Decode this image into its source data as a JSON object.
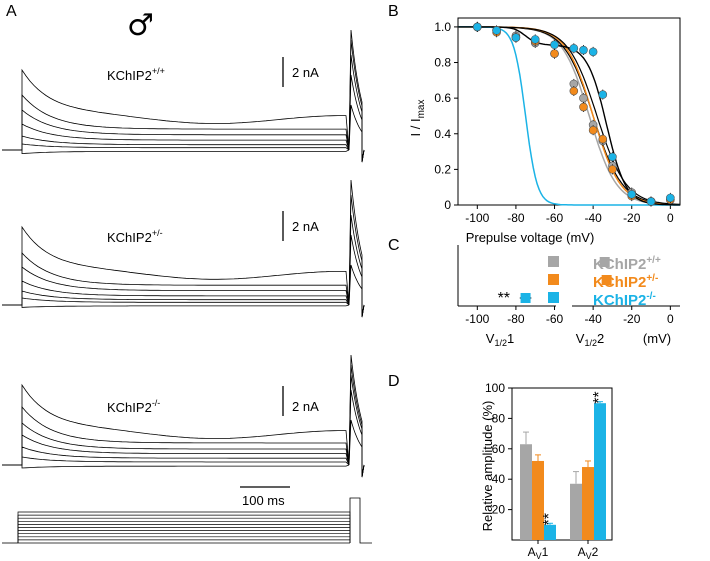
{
  "panels": {
    "a": "A",
    "b": "B",
    "c": "C",
    "d": "D"
  },
  "panel_a": {
    "sex_symbol": "♂",
    "traces": [
      {
        "genotype_base": "KChIP2",
        "genotype_sup": "+/+",
        "scale": "2 nA"
      },
      {
        "genotype_base": "KChIP2",
        "genotype_sup": "+/-",
        "scale": "2 nA"
      },
      {
        "genotype_base": "KChIP2",
        "genotype_sup": "-/-",
        "scale": "2 nA"
      }
    ],
    "time_scale": "100 ms"
  },
  "colors": {
    "wt": "#a6a6a6",
    "het": "#f28a1c",
    "ko": "#1bb3e6",
    "black": "#000000"
  },
  "chart_data": [
    {
      "type": "scatter",
      "title": "",
      "xlabel": "Prepulse voltage (mV)",
      "ylabel_base": "I / I",
      "ylabel_sub": "max",
      "xlim": [
        -110,
        5
      ],
      "ylim": [
        0,
        1.05
      ],
      "xticks": [
        -100,
        -80,
        -60,
        -40,
        -20,
        0
      ],
      "yticks": [
        0,
        0.2,
        0.4,
        0.6,
        0.8,
        1.0
      ],
      "xtick_labels": [
        "-100",
        "-80",
        "-60",
        "-40",
        "-20",
        "0"
      ],
      "ytick_labels": [
        "0",
        "0.2",
        "0.4",
        "0.6",
        "0.8",
        "1.0"
      ],
      "x": [
        -100,
        -90,
        -80,
        -70,
        -60,
        -50,
        -45,
        -40,
        -35,
        -30,
        -20,
        -10,
        0
      ],
      "series": [
        {
          "name": "KChIP2+/+",
          "color": "#a6a6a6",
          "values": [
            1.0,
            0.98,
            0.95,
            0.91,
            0.85,
            0.68,
            0.6,
            0.45,
            0.36,
            0.22,
            0.07,
            0.02,
            0.03
          ],
          "fit": {
            "v_half": -42,
            "k": 7
          }
        },
        {
          "name": "KChIP2+/-",
          "color": "#f28a1c",
          "values": [
            1.0,
            0.97,
            0.94,
            0.92,
            0.85,
            0.64,
            0.55,
            0.42,
            0.37,
            0.2,
            0.05,
            0.02,
            0.03
          ],
          "fit": {
            "v_half": -40,
            "k": 7
          }
        },
        {
          "name": "KChIP2-/-",
          "color": "#1bb3e6",
          "values": [
            1.0,
            0.98,
            0.94,
            0.93,
            0.9,
            0.88,
            0.87,
            0.86,
            0.62,
            0.27,
            0.06,
            0.02,
            0.04
          ],
          "fit_components": [
            {
              "v_half": -75,
              "k": 3,
              "amplitude": 0.1
            },
            {
              "v_half": -33,
              "k": 5,
              "amplitude": 0.9
            }
          ]
        }
      ]
    },
    {
      "type": "scatter",
      "title": "",
      "xlabel_left_base": "V",
      "xlabel_left_sub": "1/2",
      "xlabel_left_num": "1",
      "xlabel_right_base": "V",
      "xlabel_right_sub": "1/2",
      "xlabel_right_num": "2",
      "xlabel_units": "(mV)",
      "xlim": [
        -110,
        5
      ],
      "xticks": [
        -100,
        -80,
        -60,
        -40,
        -20,
        0
      ],
      "xtick_labels": [
        "-100",
        "-80",
        "-60",
        "-40",
        "-20",
        "0"
      ],
      "series": [
        {
          "name": "KChIP2+/+",
          "label_base": "KChIP2",
          "label_sup": "+/+",
          "color": "#a6a6a6",
          "v_half_2": -34,
          "err": 2
        },
        {
          "name": "KChIP2+/-",
          "label_base": "KChIP2",
          "label_sup": "+/-",
          "color": "#f28a1c",
          "v_half_2": -33,
          "err": 1
        },
        {
          "name": "KChIP2-/-",
          "label_base": "KChIP2",
          "label_sup": "-/-",
          "color": "#1bb3e6",
          "v_half_1": -75,
          "err": 3
        }
      ],
      "annotation": "**"
    },
    {
      "type": "bar",
      "title": "",
      "ylabel": "Relative amplitude (%)",
      "ylim": [
        0,
        100
      ],
      "yticks": [
        20,
        40,
        60,
        80,
        100
      ],
      "ytick_labels": [
        "20",
        "40",
        "60",
        "80",
        "100"
      ],
      "categories": [
        {
          "base": "A",
          "sub": "V",
          "num": "1"
        },
        {
          "base": "A",
          "sub": "V",
          "num": "2"
        }
      ],
      "series": [
        {
          "name": "KChIP2+/+",
          "color": "#a6a6a6",
          "values": [
            63,
            37
          ],
          "errors": [
            8,
            8
          ]
        },
        {
          "name": "KChIP2+/-",
          "color": "#f28a1c",
          "values": [
            52,
            48
          ],
          "errors": [
            4,
            4
          ]
        },
        {
          "name": "KChIP2-/-",
          "color": "#1bb3e6",
          "values": [
            10,
            90
          ],
          "errors": [
            1,
            1
          ]
        }
      ],
      "annotation": "**"
    }
  ]
}
